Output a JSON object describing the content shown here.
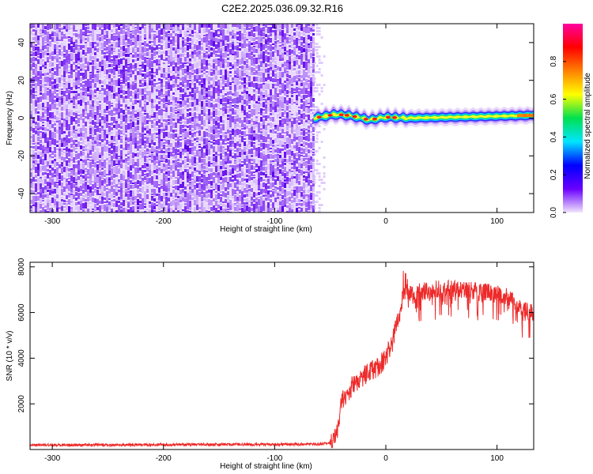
{
  "figure": {
    "title": "C2E2.2025.036.09.32.R16"
  },
  "colors": {
    "snr_line": "#ee2a2a",
    "noise_purple": "#7a16f0",
    "axis": "#000000",
    "colorbar_stops": [
      "#f0e4fb",
      "#6a00ff",
      "#0000ff",
      "#00e5ff",
      "#00e050",
      "#ffff00",
      "#ff8000",
      "#ff0000",
      "#ff00a0"
    ]
  },
  "chart_data": [
    {
      "type": "heatmap",
      "title": "C2E2.2025.036.09.32.R16",
      "xlabel": "Height of straight line (km)",
      "ylabel": "Frequency (Hz)",
      "xlim": [
        -320,
        133
      ],
      "ylim": [
        -50,
        50
      ],
      "xticks": [
        -300,
        -200,
        -100,
        0,
        100
      ],
      "yticks": [
        -40,
        -20,
        0,
        20,
        40
      ],
      "noise_region_x": [
        -320,
        -65
      ],
      "signal_track": [
        {
          "x": -65,
          "freq": 0
        },
        {
          "x": -55,
          "freq": 1
        },
        {
          "x": -45,
          "freq": 2
        },
        {
          "x": -35,
          "freq": 1.5
        },
        {
          "x": -25,
          "freq": 0.5
        },
        {
          "x": -15,
          "freq": -1
        },
        {
          "x": 0,
          "freq": 0.5
        },
        {
          "x": 20,
          "freq": 0
        },
        {
          "x": 60,
          "freq": 0.5
        },
        {
          "x": 100,
          "freq": 1
        },
        {
          "x": 133,
          "freq": 1.5
        }
      ],
      "colorbar": {
        "label": "Normalized spectral amplitude",
        "range": [
          0,
          1
        ],
        "ticks": [
          "0.0",
          "0.2",
          "0.4",
          "0.6",
          "0.8"
        ]
      }
    },
    {
      "type": "line",
      "xlabel": "Height of straight line (km)",
      "ylabel": "SNR (10 * v/v)",
      "xlim": [
        -320,
        133
      ],
      "ylim": [
        0,
        8200
      ],
      "xticks": [
        -300,
        -200,
        -100,
        0,
        100
      ],
      "yticks": [
        2000,
        4000,
        6000,
        8000
      ],
      "series": [
        {
          "color": "#ee2a2a",
          "points": [
            [
              -320,
              200
            ],
            [
              -250,
              200
            ],
            [
              -150,
              220
            ],
            [
              -60,
              230
            ],
            [
              -48,
              300
            ],
            [
              -45,
              600
            ],
            [
              -42,
              1200
            ],
            [
              -40,
              2100
            ],
            [
              -35,
              2400
            ],
            [
              -30,
              2800
            ],
            [
              -25,
              3000
            ],
            [
              -20,
              3200
            ],
            [
              -15,
              3400
            ],
            [
              -10,
              3500
            ],
            [
              -5,
              3700
            ],
            [
              0,
              4100
            ],
            [
              5,
              4500
            ],
            [
              10,
              5600
            ],
            [
              15,
              6600
            ],
            [
              18,
              7000
            ],
            [
              25,
              6700
            ],
            [
              30,
              6900
            ],
            [
              40,
              7000
            ],
            [
              50,
              7050
            ],
            [
              70,
              7000
            ],
            [
              90,
              6900
            ],
            [
              110,
              6700
            ],
            [
              120,
              6200
            ],
            [
              125,
              6100
            ],
            [
              133,
              6000
            ]
          ]
        }
      ]
    }
  ]
}
